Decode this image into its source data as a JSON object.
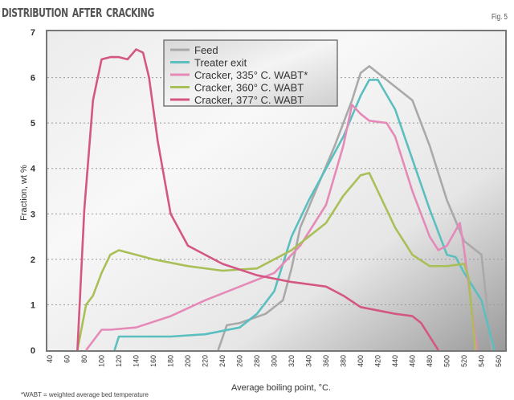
{
  "chart_data": {
    "type": "line",
    "title": "Distribution after cracking",
    "figure_label": "Fig. 5",
    "xlabel": "Average boiling point, °C.",
    "ylabel": "Fraction, wt %",
    "footnote": "*WABT = weighted average bed temperature",
    "xlim": [
      40,
      560
    ],
    "ylim": [
      0,
      7
    ],
    "xticks": [
      40,
      60,
      80,
      100,
      120,
      140,
      160,
      180,
      200,
      220,
      240,
      260,
      280,
      300,
      320,
      340,
      360,
      380,
      400,
      420,
      440,
      460,
      480,
      500,
      520,
      540,
      560
    ],
    "yticks": [
      0,
      1,
      2,
      3,
      4,
      5,
      6,
      7
    ],
    "grid": "horizontal dotted",
    "legend_position": "top-center",
    "series": [
      {
        "name": "Feed",
        "color": "#a9a9a9",
        "points": [
          [
            235,
            0
          ],
          [
            245,
            0.55
          ],
          [
            260,
            0.6
          ],
          [
            290,
            0.8
          ],
          [
            310,
            1.1
          ],
          [
            320,
            1.8
          ],
          [
            330,
            2.7
          ],
          [
            350,
            3.6
          ],
          [
            370,
            4.5
          ],
          [
            390,
            5.5
          ],
          [
            400,
            6.1
          ],
          [
            410,
            6.25
          ],
          [
            420,
            6.1
          ],
          [
            440,
            5.8
          ],
          [
            460,
            5.5
          ],
          [
            480,
            4.5
          ],
          [
            500,
            3.3
          ],
          [
            520,
            2.4
          ],
          [
            540,
            2.1
          ],
          [
            552,
            0
          ]
        ]
      },
      {
        "name": "Treater exit",
        "color": "#5bbfc0",
        "points": [
          [
            115,
            0
          ],
          [
            120,
            0.3
          ],
          [
            180,
            0.3
          ],
          [
            220,
            0.35
          ],
          [
            260,
            0.5
          ],
          [
            280,
            0.8
          ],
          [
            300,
            1.3
          ],
          [
            320,
            2.5
          ],
          [
            340,
            3.3
          ],
          [
            360,
            4.0
          ],
          [
            380,
            4.7
          ],
          [
            400,
            5.6
          ],
          [
            410,
            5.95
          ],
          [
            420,
            5.95
          ],
          [
            440,
            5.3
          ],
          [
            460,
            4.2
          ],
          [
            480,
            3.1
          ],
          [
            500,
            2.1
          ],
          [
            510,
            2.05
          ],
          [
            520,
            1.7
          ],
          [
            540,
            1.1
          ],
          [
            555,
            0
          ]
        ]
      },
      {
        "name": "Cracker, 335° C. WABT*",
        "color": "#e58ab8",
        "points": [
          [
            82,
            0
          ],
          [
            100,
            0.45
          ],
          [
            110,
            0.45
          ],
          [
            140,
            0.5
          ],
          [
            180,
            0.75
          ],
          [
            220,
            1.1
          ],
          [
            260,
            1.4
          ],
          [
            300,
            1.7
          ],
          [
            330,
            2.3
          ],
          [
            360,
            3.2
          ],
          [
            380,
            4.5
          ],
          [
            390,
            5.4
          ],
          [
            400,
            5.2
          ],
          [
            410,
            5.05
          ],
          [
            430,
            5.0
          ],
          [
            440,
            4.7
          ],
          [
            460,
            3.5
          ],
          [
            480,
            2.5
          ],
          [
            490,
            2.2
          ],
          [
            500,
            2.3
          ],
          [
            515,
            2.8
          ],
          [
            520,
            2.2
          ],
          [
            535,
            0
          ]
        ]
      },
      {
        "name": "Cracker, 360° C. WABT",
        "color": "#a9bf58",
        "points": [
          [
            72,
            0
          ],
          [
            82,
            1.0
          ],
          [
            90,
            1.2
          ],
          [
            100,
            1.7
          ],
          [
            110,
            2.1
          ],
          [
            120,
            2.2
          ],
          [
            160,
            2.0
          ],
          [
            200,
            1.85
          ],
          [
            240,
            1.75
          ],
          [
            280,
            1.8
          ],
          [
            320,
            2.2
          ],
          [
            360,
            2.8
          ],
          [
            380,
            3.4
          ],
          [
            400,
            3.85
          ],
          [
            410,
            3.9
          ],
          [
            420,
            3.5
          ],
          [
            440,
            2.7
          ],
          [
            460,
            2.1
          ],
          [
            480,
            1.85
          ],
          [
            500,
            1.85
          ],
          [
            520,
            1.9
          ],
          [
            525,
            1.6
          ],
          [
            533,
            0
          ]
        ]
      },
      {
        "name": "Cracker, 377° C. WABT",
        "color": "#d45783",
        "points": [
          [
            72,
            0
          ],
          [
            80,
            3.1
          ],
          [
            90,
            5.5
          ],
          [
            100,
            6.4
          ],
          [
            110,
            6.45
          ],
          [
            120,
            6.45
          ],
          [
            130,
            6.4
          ],
          [
            140,
            6.62
          ],
          [
            148,
            6.55
          ],
          [
            155,
            6.0
          ],
          [
            165,
            4.6
          ],
          [
            180,
            3.0
          ],
          [
            200,
            2.3
          ],
          [
            240,
            1.9
          ],
          [
            280,
            1.65
          ],
          [
            320,
            1.5
          ],
          [
            360,
            1.4
          ],
          [
            380,
            1.2
          ],
          [
            400,
            0.95
          ],
          [
            440,
            0.8
          ],
          [
            460,
            0.75
          ],
          [
            470,
            0.6
          ],
          [
            490,
            0
          ]
        ]
      }
    ]
  }
}
